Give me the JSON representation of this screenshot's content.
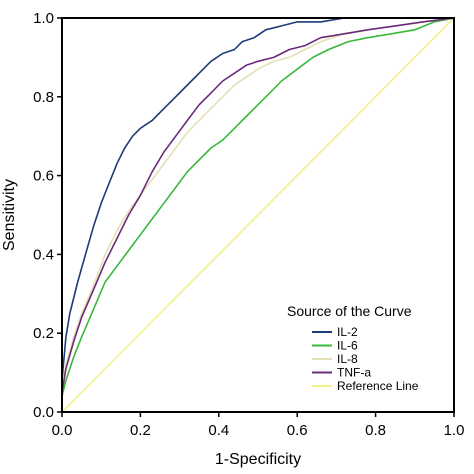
{
  "chart_data": {
    "type": "line",
    "title": "",
    "xlabel": "1-Specificity",
    "ylabel": "Sensitivity",
    "xlim": [
      0,
      1
    ],
    "ylim": [
      0,
      1
    ],
    "xticks": [
      0,
      0.2,
      0.4,
      0.6,
      0.8,
      1.0
    ],
    "yticks": [
      0,
      0.2,
      0.4,
      0.6,
      0.8,
      1.0
    ],
    "xtick_labels": [
      "0.0",
      "0.2",
      "0.4",
      "0.6",
      "0.8",
      "1.0"
    ],
    "ytick_labels": [
      "0.0",
      "0.2",
      "0.4",
      "0.6",
      "0.8",
      "1.0"
    ],
    "grid": false,
    "legend": {
      "title": "Source of the Curve",
      "position": "bottom-right"
    },
    "series": [
      {
        "name": "IL-2",
        "color": "#1f3a7a",
        "points": [
          [
            0,
            0
          ],
          [
            0,
            0.08
          ],
          [
            0.01,
            0.19
          ],
          [
            0.02,
            0.25
          ],
          [
            0.04,
            0.33
          ],
          [
            0.06,
            0.4
          ],
          [
            0.08,
            0.47
          ],
          [
            0.1,
            0.53
          ],
          [
            0.12,
            0.58
          ],
          [
            0.14,
            0.63
          ],
          [
            0.16,
            0.67
          ],
          [
            0.18,
            0.7
          ],
          [
            0.2,
            0.72
          ],
          [
            0.23,
            0.74
          ],
          [
            0.26,
            0.77
          ],
          [
            0.29,
            0.8
          ],
          [
            0.32,
            0.83
          ],
          [
            0.35,
            0.86
          ],
          [
            0.38,
            0.89
          ],
          [
            0.41,
            0.91
          ],
          [
            0.44,
            0.92
          ],
          [
            0.46,
            0.94
          ],
          [
            0.49,
            0.95
          ],
          [
            0.52,
            0.97
          ],
          [
            0.56,
            0.98
          ],
          [
            0.6,
            0.99
          ],
          [
            0.66,
            0.99
          ],
          [
            0.72,
            1.0
          ],
          [
            0.85,
            1.0
          ],
          [
            1.0,
            1.0
          ]
        ]
      },
      {
        "name": "IL-6",
        "color": "#3ab83a",
        "points": [
          [
            0,
            0
          ],
          [
            0,
            0.04
          ],
          [
            0.01,
            0.08
          ],
          [
            0.03,
            0.14
          ],
          [
            0.05,
            0.19
          ],
          [
            0.08,
            0.26
          ],
          [
            0.11,
            0.33
          ],
          [
            0.14,
            0.37
          ],
          [
            0.17,
            0.41
          ],
          [
            0.2,
            0.45
          ],
          [
            0.23,
            0.49
          ],
          [
            0.26,
            0.53
          ],
          [
            0.29,
            0.57
          ],
          [
            0.32,
            0.61
          ],
          [
            0.35,
            0.64
          ],
          [
            0.38,
            0.67
          ],
          [
            0.41,
            0.69
          ],
          [
            0.44,
            0.72
          ],
          [
            0.47,
            0.75
          ],
          [
            0.5,
            0.78
          ],
          [
            0.53,
            0.81
          ],
          [
            0.56,
            0.84
          ],
          [
            0.6,
            0.87
          ],
          [
            0.64,
            0.9
          ],
          [
            0.68,
            0.92
          ],
          [
            0.73,
            0.94
          ],
          [
            0.78,
            0.95
          ],
          [
            0.84,
            0.96
          ],
          [
            0.9,
            0.97
          ],
          [
            0.95,
            0.99
          ],
          [
            1.0,
            1.0
          ]
        ]
      },
      {
        "name": "IL-8",
        "color": "#e3e0b4",
        "points": [
          [
            0,
            0
          ],
          [
            0,
            0.06
          ],
          [
            0.01,
            0.12
          ],
          [
            0.03,
            0.19
          ],
          [
            0.05,
            0.25
          ],
          [
            0.08,
            0.32
          ],
          [
            0.11,
            0.4
          ],
          [
            0.14,
            0.46
          ],
          [
            0.17,
            0.51
          ],
          [
            0.2,
            0.55
          ],
          [
            0.23,
            0.59
          ],
          [
            0.26,
            0.63
          ],
          [
            0.29,
            0.67
          ],
          [
            0.32,
            0.71
          ],
          [
            0.35,
            0.74
          ],
          [
            0.38,
            0.77
          ],
          [
            0.41,
            0.8
          ],
          [
            0.44,
            0.83
          ],
          [
            0.47,
            0.85
          ],
          [
            0.5,
            0.87
          ],
          [
            0.54,
            0.89
          ],
          [
            0.58,
            0.9
          ],
          [
            0.62,
            0.92
          ],
          [
            0.66,
            0.94
          ],
          [
            0.72,
            0.96
          ],
          [
            0.78,
            0.97
          ],
          [
            0.85,
            0.98
          ],
          [
            0.92,
            0.99
          ],
          [
            1.0,
            1.0
          ]
        ]
      },
      {
        "name": "TNF-a",
        "color": "#6a2b7a",
        "points": [
          [
            0,
            0
          ],
          [
            0,
            0.05
          ],
          [
            0.01,
            0.11
          ],
          [
            0.03,
            0.18
          ],
          [
            0.05,
            0.24
          ],
          [
            0.08,
            0.31
          ],
          [
            0.11,
            0.38
          ],
          [
            0.14,
            0.44
          ],
          [
            0.17,
            0.5
          ],
          [
            0.2,
            0.55
          ],
          [
            0.23,
            0.61
          ],
          [
            0.26,
            0.66
          ],
          [
            0.29,
            0.7
          ],
          [
            0.32,
            0.74
          ],
          [
            0.35,
            0.78
          ],
          [
            0.38,
            0.81
          ],
          [
            0.41,
            0.84
          ],
          [
            0.44,
            0.86
          ],
          [
            0.47,
            0.88
          ],
          [
            0.5,
            0.89
          ],
          [
            0.54,
            0.9
          ],
          [
            0.58,
            0.92
          ],
          [
            0.62,
            0.93
          ],
          [
            0.66,
            0.95
          ],
          [
            0.72,
            0.96
          ],
          [
            0.78,
            0.97
          ],
          [
            0.85,
            0.98
          ],
          [
            0.92,
            0.99
          ],
          [
            1.0,
            1.0
          ]
        ]
      },
      {
        "name": "Reference Line",
        "color": "#f2f08a",
        "points": [
          [
            0,
            0
          ],
          [
            1,
            1
          ]
        ]
      }
    ]
  }
}
